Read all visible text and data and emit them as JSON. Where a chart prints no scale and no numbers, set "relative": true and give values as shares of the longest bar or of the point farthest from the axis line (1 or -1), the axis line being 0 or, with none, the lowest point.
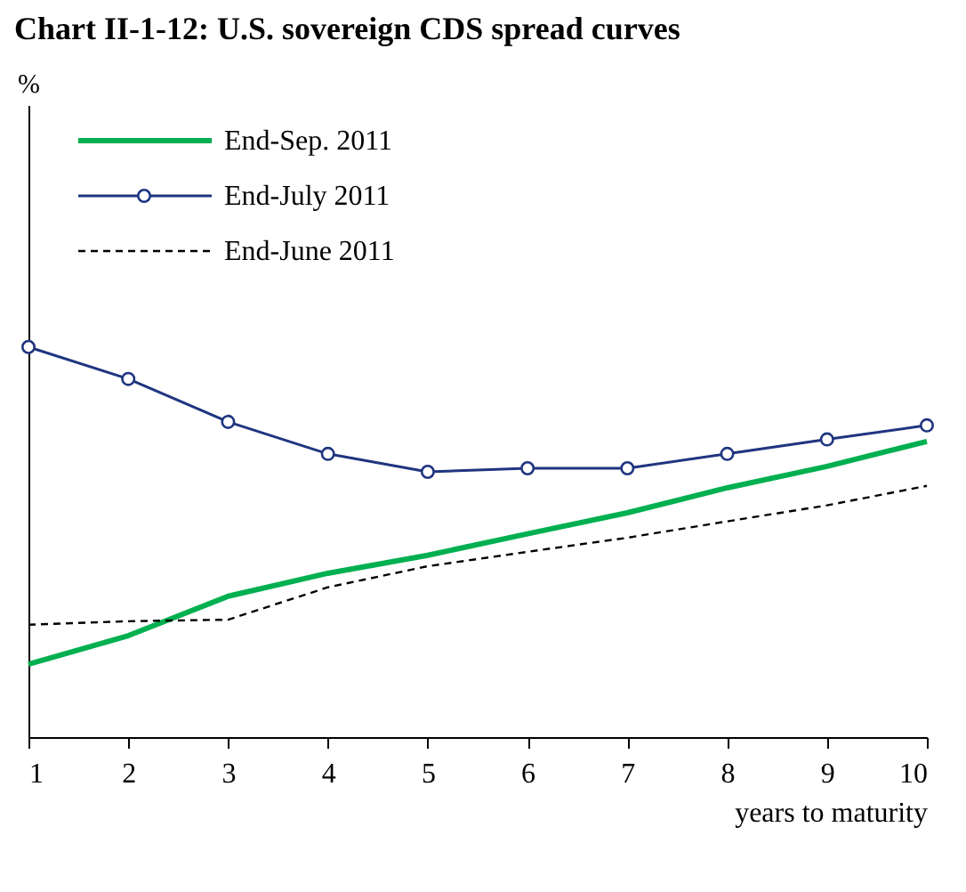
{
  "chart_data": {
    "type": "line",
    "title": "Chart II-1-12: U.S. sovereign CDS spread curves",
    "xlabel": "years to maturity",
    "annotations": [
      "%"
    ],
    "relative": true,
    "x": [
      1,
      2,
      3,
      4,
      5,
      6,
      7,
      8,
      9,
      10
    ],
    "xlim": [
      1,
      10
    ],
    "xticks": [
      1,
      2,
      3,
      4,
      5,
      6,
      7,
      8,
      9,
      10
    ],
    "legend": "top left",
    "grid": false,
    "series": [
      {
        "name": "End-Sep. 2011",
        "color": "#00b050",
        "marker": "none",
        "line_style": "solid",
        "values": [
          0.187,
          0.26,
          0.361,
          0.42,
          0.466,
          0.521,
          0.575,
          0.639,
          0.694,
          0.758
        ]
      },
      {
        "name": "End-July 2011",
        "color": "#1f3580",
        "marker": "circle",
        "line_style": "solid",
        "values": [
          1,
          0.918,
          0.808,
          0.726,
          0.68,
          0.689,
          0.689,
          0.726,
          0.763,
          0.799
        ]
      },
      {
        "name": "End-June 2011",
        "color": "#000000",
        "marker": "none",
        "line_style": "dashed",
        "values": [
          0.288,
          0.297,
          0.301,
          0.384,
          0.438,
          0.475,
          0.511,
          0.553,
          0.594,
          0.644
        ]
      }
    ]
  }
}
